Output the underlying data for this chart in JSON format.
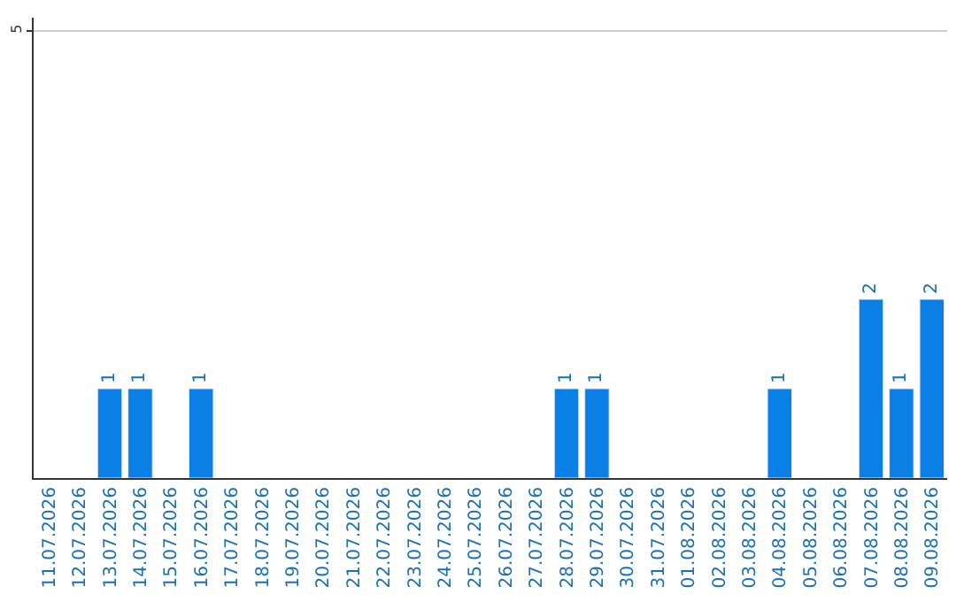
{
  "chart_data": {
    "type": "bar",
    "categories": [
      "11.07.2026",
      "12.07.2026",
      "13.07.2026",
      "14.07.2026",
      "15.07.2026",
      "16.07.2026",
      "17.07.2026",
      "18.07.2026",
      "19.07.2026",
      "20.07.2026",
      "21.07.2026",
      "22.07.2026",
      "23.07.2026",
      "24.07.2026",
      "25.07.2026",
      "26.07.2026",
      "27.07.2026",
      "28.07.2026",
      "29.07.2026",
      "30.07.2026",
      "31.07.2026",
      "01.08.2026",
      "02.08.2026",
      "03.08.2026",
      "04.08.2026",
      "05.08.2026",
      "06.08.2026",
      "07.08.2026",
      "08.08.2026",
      "09.08.2026"
    ],
    "values": [
      null,
      null,
      1,
      1,
      null,
      1,
      null,
      null,
      null,
      null,
      null,
      null,
      null,
      null,
      null,
      null,
      null,
      1,
      1,
      null,
      null,
      null,
      null,
      null,
      1,
      null,
      null,
      2,
      1,
      2
    ],
    "value_labels": [
      null,
      null,
      "1",
      "1",
      null,
      "1",
      null,
      null,
      null,
      null,
      null,
      null,
      null,
      null,
      null,
      null,
      null,
      "1",
      "1",
      null,
      null,
      null,
      null,
      null,
      "1",
      null,
      null,
      "2",
      "1",
      "2"
    ],
    "color": "#0a7fe6",
    "ylim": [
      0,
      5.15
    ],
    "yticks": [
      5
    ],
    "grid": "y",
    "legend": false
  }
}
